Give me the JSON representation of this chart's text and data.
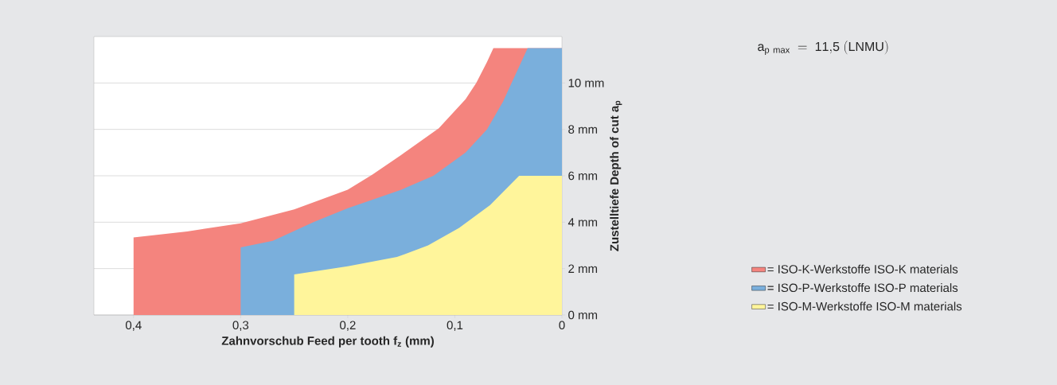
{
  "chart_data": {
    "type": "area",
    "xlabel": "Zahnvorschub Feed per tooth f$_{z}$ (mm)",
    "ylabel": "Zustelltiefe Depth of cut a$_{p}$",
    "annotations": [
      "\\mathrm{a_{p\\ max}\\ =\\ 11{,}5\\ (LNMU)}"
    ],
    "xlim": [
      0.437,
      0
    ],
    "ylim": [
      0,
      12
    ],
    "xticks": [
      {
        "value": 0.4,
        "label": "0,4"
      },
      {
        "value": 0.3,
        "label": "0,3"
      },
      {
        "value": 0.2,
        "label": "0,2"
      },
      {
        "value": 0.1,
        "label": "0,1"
      },
      0
    ],
    "yticks": [
      {
        "value": 0,
        "label": "0 mm"
      },
      {
        "value": 2,
        "label": "2 mm"
      },
      {
        "value": 4,
        "label": "4 mm"
      },
      {
        "value": 6,
        "label": "6 mm"
      },
      {
        "value": 8,
        "label": "8 mm"
      },
      {
        "value": 10,
        "label": "10 mm"
      }
    ],
    "grid": "y",
    "legend": "bottom right",
    "series": [
      {
        "name": "= ISO-K-Werkstoffe ISO-K materials",
        "color": "#f4847e",
        "x": [
          0.4,
          0.35,
          0.3,
          0.25,
          0.2,
          0.177,
          0.15,
          0.115,
          0.09,
          0.08,
          0.07,
          0.064,
          0
        ],
        "values": [
          3.34,
          3.6,
          3.95,
          4.55,
          5.4,
          6.05,
          6.9,
          8.05,
          9.3,
          10.0,
          10.9,
          11.5,
          11.5
        ]
      },
      {
        "name": "= ISO-P-Werkstoffe ISO-P materials",
        "color": "#7aafdc",
        "x": [
          0.3,
          0.27,
          0.232,
          0.2,
          0.15,
          0.12,
          0.09,
          0.07,
          0.055,
          0.047,
          0.032,
          0
        ],
        "values": [
          2.91,
          3.2,
          4.0,
          4.6,
          5.4,
          6.0,
          7.0,
          8.0,
          9.2,
          10.0,
          11.5,
          11.5
        ]
      },
      {
        "name": "= ISO-M-Werkstoffe ISO-M materials",
        "color": "#fff59b",
        "x": [
          0.25,
          0.2,
          0.154,
          0.125,
          0.096,
          0.067,
          0.04,
          0
        ],
        "values": [
          1.75,
          2.1,
          2.5,
          3.0,
          3.75,
          4.74,
          6.0,
          6.0
        ]
      }
    ]
  }
}
